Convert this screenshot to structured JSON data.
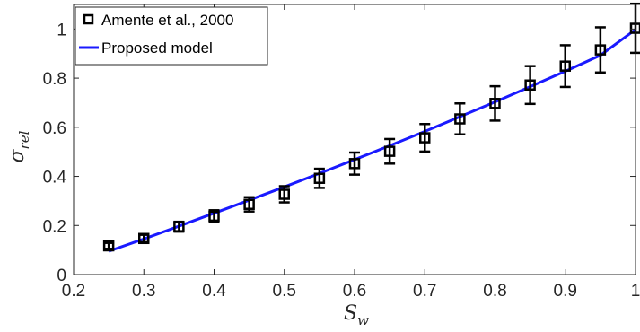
{
  "chart_data": {
    "type": "scatter",
    "xlabel": {
      "main": "S",
      "sub": "w"
    },
    "ylabel": {
      "main": "σ",
      "sub": "rel"
    },
    "xlim": [
      0.2,
      1.0
    ],
    "ylim": [
      0,
      1.1
    ],
    "xticks": [
      "0.2",
      "0.3",
      "0.4",
      "0.5",
      "0.6",
      "0.7",
      "0.8",
      "0.9",
      "1"
    ],
    "yticks": [
      "0",
      "0.2",
      "0.4",
      "0.6",
      "0.8",
      "1"
    ],
    "grid": false,
    "legend_position": "top-left",
    "legend": [
      {
        "label": "Amente et al., 2000",
        "style": "square-marker-with-errorbars"
      },
      {
        "label": "Proposed model",
        "style": "line"
      }
    ],
    "series": [
      {
        "name": "Amente et al., 2000",
        "kind": "markers-with-errorbars",
        "color": "#000000",
        "x": [
          0.25,
          0.3,
          0.35,
          0.4,
          0.45,
          0.5,
          0.55,
          0.6,
          0.65,
          0.7,
          0.75,
          0.8,
          0.85,
          0.9,
          0.95,
          1.0
        ],
        "y": [
          0.117,
          0.147,
          0.195,
          0.238,
          0.286,
          0.327,
          0.392,
          0.452,
          0.502,
          0.557,
          0.634,
          0.697,
          0.772,
          0.849,
          0.915,
          1.003
        ],
        "yerr": [
          0.012,
          0.015,
          0.02,
          0.024,
          0.029,
          0.033,
          0.039,
          0.045,
          0.05,
          0.056,
          0.063,
          0.07,
          0.077,
          0.085,
          0.092,
          0.1
        ]
      },
      {
        "name": "Proposed model",
        "kind": "line",
        "color": "#1a1aff",
        "x": [
          0.25,
          0.3,
          0.35,
          0.4,
          0.45,
          0.5,
          0.55,
          0.6,
          0.65,
          0.7,
          0.75,
          0.8,
          0.85,
          0.9,
          0.95,
          1.0
        ],
        "y": [
          0.095,
          0.145,
          0.197,
          0.25,
          0.303,
          0.357,
          0.412,
          0.468,
          0.525,
          0.583,
          0.643,
          0.703,
          0.765,
          0.828,
          0.893,
          0.998
        ]
      }
    ]
  }
}
